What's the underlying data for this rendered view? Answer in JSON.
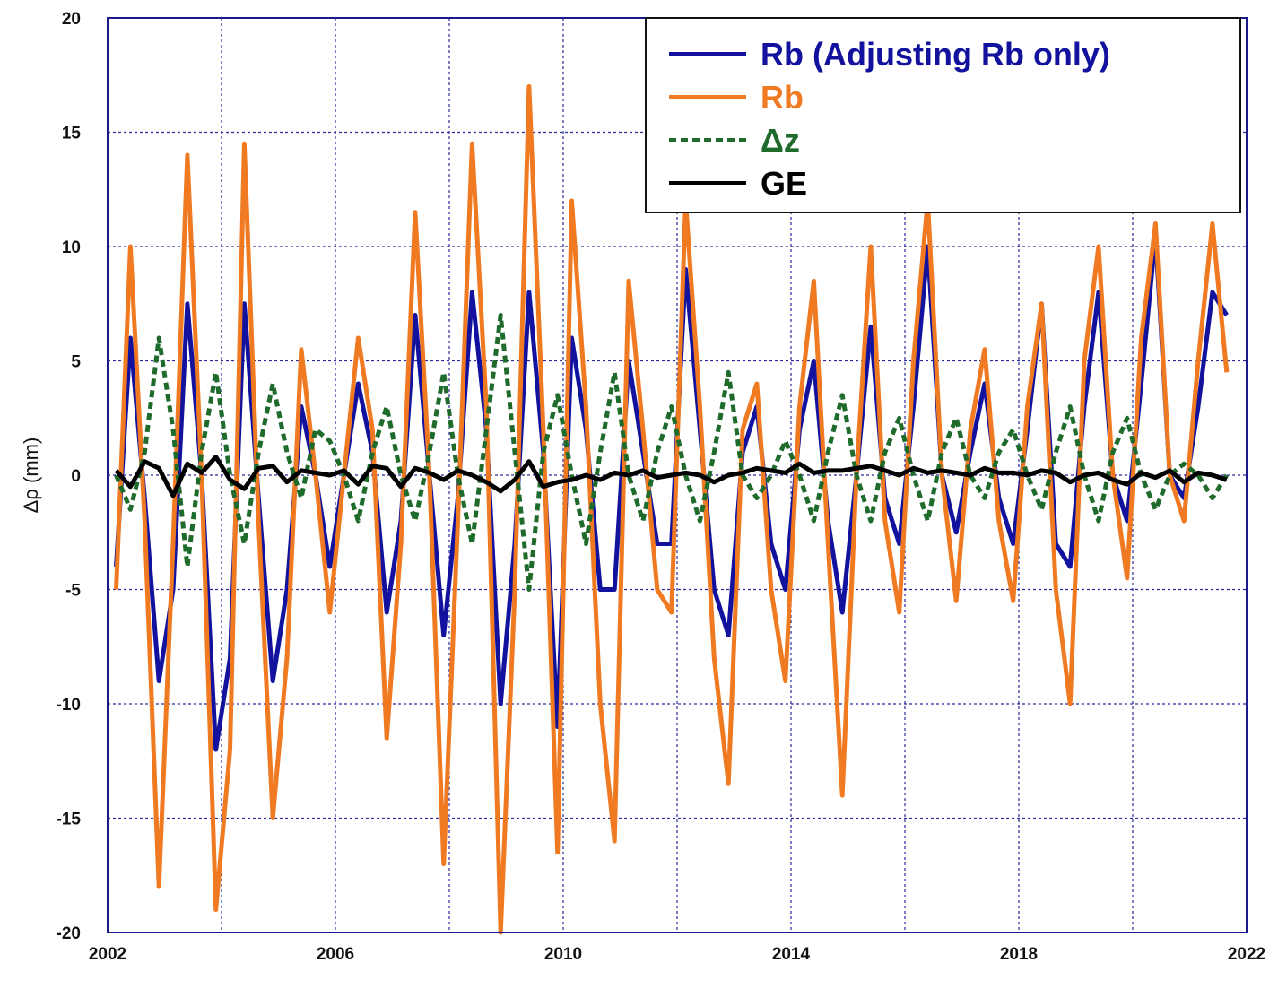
{
  "chart_data": {
    "type": "line",
    "ylabel": "Δρ (mm)",
    "xlim": [
      2002,
      2022
    ],
    "ylim": [
      -20,
      20
    ],
    "xticks": [
      2002,
      2006,
      2010,
      2014,
      2018,
      2022
    ],
    "xminorticks": [
      2004,
      2008,
      2012,
      2016,
      2020
    ],
    "yticks": [
      -20,
      -15,
      -10,
      -5,
      0,
      5,
      10,
      15,
      20
    ],
    "grid": true,
    "legend": "upper right",
    "x": [
      2002.15,
      2002.4,
      2002.65,
      2002.9,
      2003.15,
      2003.4,
      2003.65,
      2003.9,
      2004.15,
      2004.4,
      2004.65,
      2004.9,
      2005.15,
      2005.4,
      2005.65,
      2005.9,
      2006.15,
      2006.4,
      2006.65,
      2006.9,
      2007.15,
      2007.4,
      2007.65,
      2007.9,
      2008.15,
      2008.4,
      2008.65,
      2008.9,
      2009.15,
      2009.4,
      2009.65,
      2009.9,
      2010.15,
      2010.4,
      2010.65,
      2010.9,
      2011.15,
      2011.4,
      2011.65,
      2011.9,
      2012.15,
      2012.4,
      2012.65,
      2012.9,
      2013.15,
      2013.4,
      2013.65,
      2013.9,
      2014.15,
      2014.4,
      2014.65,
      2014.9,
      2015.15,
      2015.4,
      2015.65,
      2015.9,
      2016.15,
      2016.4,
      2016.65,
      2016.9,
      2017.15,
      2017.4,
      2017.65,
      2017.9,
      2018.15,
      2018.4,
      2018.65,
      2018.9,
      2019.15,
      2019.4,
      2019.65,
      2019.9,
      2020.15,
      2020.4,
      2020.65,
      2020.9,
      2021.15,
      2021.4,
      2021.65
    ],
    "series": [
      {
        "name": "Rb (Adjusting Rb only)",
        "color": "#12129e",
        "dash": false,
        "values": [
          -4,
          6,
          -1,
          -9,
          -5,
          7.5,
          0,
          -12,
          -8,
          7.5,
          -1,
          -9,
          -5,
          3,
          0,
          -4,
          0,
          4,
          1,
          -6,
          -2,
          7,
          0,
          -7,
          -1,
          8,
          2,
          -10,
          -3,
          8,
          1,
          -11,
          6,
          2,
          -5,
          -5,
          5,
          1,
          -3,
          -3,
          9,
          2,
          -5,
          -7,
          1,
          3,
          -3,
          -5,
          2,
          5,
          -2,
          -6,
          0,
          6.5,
          -1,
          -3,
          3,
          10,
          0,
          -2.5,
          1,
          4,
          -1,
          -3,
          2,
          7.5,
          -3,
          -4,
          3,
          8,
          0,
          -2,
          4,
          10.5,
          0,
          -1,
          3,
          8,
          7
        ]
      },
      {
        "name": "Rb",
        "color": "#ef7a22",
        "dash": false,
        "values": [
          -5,
          10,
          -2,
          -18,
          -3,
          14,
          0,
          -19,
          -12,
          14.5,
          -2,
          -15,
          -8,
          5.5,
          0,
          -6,
          0,
          6,
          2,
          -11.5,
          -3,
          11.5,
          0,
          -17,
          -2,
          14.5,
          3,
          -20,
          -5,
          17,
          2,
          -16.5,
          12,
          3,
          -10,
          -16,
          8.5,
          2,
          -5,
          -6,
          12,
          3,
          -8,
          -13.5,
          2,
          4,
          -5,
          -9,
          3,
          8.5,
          -3,
          -14,
          0,
          10,
          -2,
          -6,
          5,
          12,
          0,
          -5.5,
          2,
          5.5,
          -2,
          -5.5,
          3,
          7.5,
          -5,
          -10,
          5,
          10,
          0,
          -4.5,
          6,
          11,
          0,
          -2,
          5,
          11,
          4.5
        ]
      },
      {
        "name": "Δz",
        "color": "#1e6b2c",
        "dash": true,
        "values": [
          0,
          -1.5,
          1,
          6,
          2,
          -4,
          1,
          4.5,
          0,
          -3,
          1,
          4,
          1,
          -1,
          2,
          1.5,
          0,
          -2,
          1,
          3,
          0,
          -2,
          1,
          4.5,
          0,
          -3,
          2,
          7,
          1,
          -5,
          1,
          3.5,
          0,
          -3,
          1,
          4.5,
          0,
          -2,
          1,
          3,
          0,
          -2,
          1,
          4.5,
          0,
          -1,
          0,
          1.5,
          0,
          -2,
          1,
          3.5,
          0,
          -2,
          1,
          2.5,
          0,
          -2,
          1,
          2.5,
          0,
          -1,
          1,
          2,
          0,
          -1.5,
          1,
          3,
          0,
          -2,
          1,
          2.5,
          0,
          -1.5,
          0,
          0.5,
          0,
          -1,
          0
        ]
      },
      {
        "name": "GE",
        "color": "#000000",
        "dash": false,
        "values": [
          0.2,
          -0.5,
          0.6,
          0.3,
          -0.9,
          0.5,
          0.1,
          0.8,
          -0.2,
          -0.6,
          0.3,
          0.4,
          -0.3,
          0.2,
          0.1,
          0.0,
          0.2,
          -0.4,
          0.4,
          0.3,
          -0.5,
          0.3,
          0.1,
          -0.2,
          0.2,
          0.0,
          -0.3,
          -0.7,
          -0.2,
          0.6,
          -0.5,
          -0.3,
          -0.2,
          0.0,
          -0.2,
          0.1,
          0.0,
          0.2,
          -0.1,
          0.0,
          0.1,
          0.0,
          -0.3,
          0.0,
          0.1,
          0.3,
          0.2,
          0.1,
          0.5,
          0.1,
          0.2,
          0.2,
          0.3,
          0.4,
          0.2,
          0.0,
          0.3,
          0.1,
          0.2,
          0.1,
          0.0,
          0.3,
          0.1,
          0.1,
          0.0,
          0.2,
          0.1,
          -0.3,
          0.0,
          0.1,
          -0.2,
          -0.4,
          0.1,
          -0.1,
          0.2,
          -0.3,
          0.1,
          0.0,
          -0.2
        ]
      }
    ]
  }
}
